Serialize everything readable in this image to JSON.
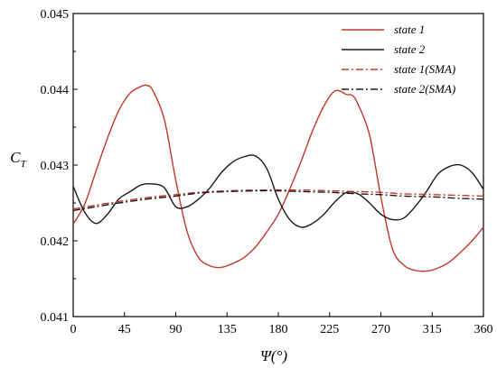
{
  "chart_data": {
    "type": "line",
    "title": "",
    "xlabel": "Ψ(°)",
    "ylabel": "C_T",
    "ylabel_main": "C",
    "ylabel_sub": "T",
    "xlim": [
      0,
      360
    ],
    "ylim": [
      0.041,
      0.045
    ],
    "xticks": [
      0,
      45,
      90,
      135,
      180,
      225,
      270,
      315,
      360
    ],
    "yticks": [
      0.041,
      0.042,
      0.043,
      0.044,
      0.045
    ],
    "ytick_labels": [
      "0.041",
      "0.042",
      "0.043",
      "0.044",
      "0.045"
    ],
    "grid": false,
    "legend_position": "top-right",
    "series": [
      {
        "name": "state 1",
        "style": "solid",
        "color": "#c0392b",
        "x": [
          0,
          10,
          20,
          30,
          40,
          50,
          60,
          65,
          70,
          80,
          90,
          100,
          110,
          120,
          130,
          140,
          150,
          160,
          170,
          180,
          190,
          200,
          210,
          220,
          230,
          240,
          245,
          250,
          260,
          270,
          280,
          290,
          300,
          310,
          320,
          330,
          340,
          350,
          360
        ],
        "y": [
          0.04222,
          0.04248,
          0.04292,
          0.04335,
          0.04372,
          0.04395,
          0.04404,
          0.04405,
          0.04398,
          0.0436,
          0.0428,
          0.04212,
          0.04178,
          0.04167,
          0.04165,
          0.0417,
          0.04178,
          0.04192,
          0.04212,
          0.04235,
          0.04268,
          0.04305,
          0.04345,
          0.04378,
          0.04398,
          0.04393,
          0.04392,
          0.0438,
          0.0434,
          0.04258,
          0.0419,
          0.04168,
          0.04161,
          0.0416,
          0.04164,
          0.04172,
          0.04185,
          0.042,
          0.04218
        ]
      },
      {
        "name": "state 2",
        "style": "solid",
        "color": "#1a1a1a",
        "x": [
          0,
          10,
          20,
          30,
          40,
          50,
          60,
          70,
          80,
          90,
          100,
          110,
          120,
          130,
          140,
          150,
          160,
          170,
          180,
          190,
          200,
          210,
          220,
          230,
          240,
          250,
          260,
          270,
          280,
          290,
          300,
          310,
          320,
          330,
          340,
          350,
          360
        ],
        "y": [
          0.04272,
          0.04238,
          0.04223,
          0.04235,
          0.04255,
          0.04265,
          0.04274,
          0.04275,
          0.0427,
          0.04245,
          0.04245,
          0.04255,
          0.0427,
          0.0429,
          0.04304,
          0.04311,
          0.04312,
          0.04295,
          0.04255,
          0.04228,
          0.04218,
          0.04223,
          0.04235,
          0.04252,
          0.04264,
          0.04262,
          0.0425,
          0.04235,
          0.04228,
          0.0423,
          0.04245,
          0.04265,
          0.04288,
          0.04298,
          0.043,
          0.0429,
          0.04268
        ]
      },
      {
        "name": "state 1(SMA)",
        "style": "dashdot",
        "color": "#c0392b",
        "x": [
          0,
          20,
          45,
          70,
          90,
          110,
          135,
          160,
          180,
          200,
          225,
          250,
          270,
          290,
          315,
          340,
          360
        ],
        "y": [
          0.04242,
          0.04247,
          0.04253,
          0.04258,
          0.04261,
          0.04264,
          0.04266,
          0.04267,
          0.04267,
          0.04267,
          0.04266,
          0.04265,
          0.04264,
          0.04262,
          0.04261,
          0.0426,
          0.04259
        ]
      },
      {
        "name": "state 2(SMA)",
        "style": "dashdot",
        "color": "#1a1a1a",
        "x": [
          0,
          20,
          45,
          70,
          90,
          110,
          135,
          160,
          180,
          200,
          225,
          250,
          270,
          290,
          315,
          340,
          360
        ],
        "y": [
          0.0424,
          0.04245,
          0.04251,
          0.04256,
          0.04259,
          0.04263,
          0.04265,
          0.04266,
          0.04266,
          0.04265,
          0.04264,
          0.04262,
          0.04261,
          0.04259,
          0.04258,
          0.04256,
          0.04255
        ]
      }
    ]
  }
}
